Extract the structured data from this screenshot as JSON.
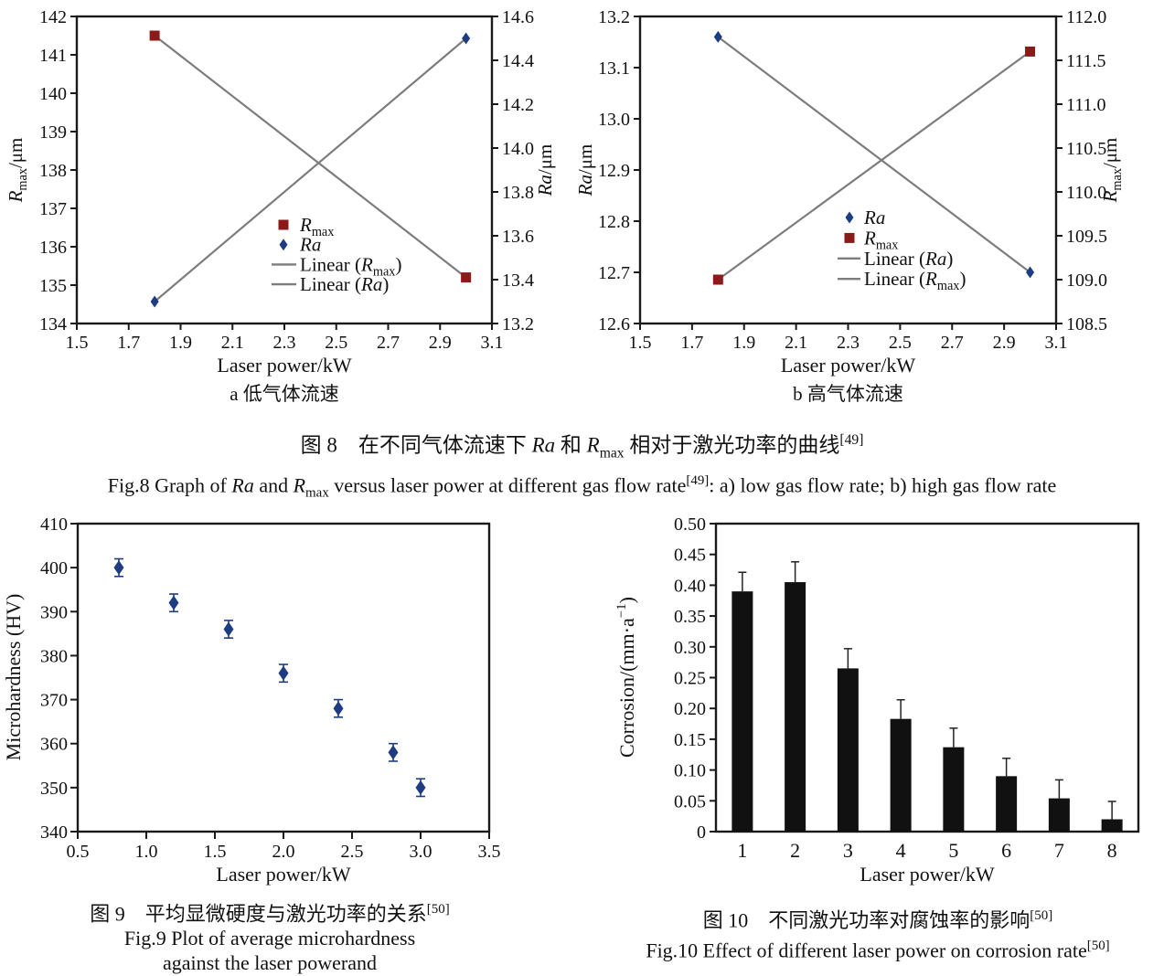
{
  "page": {
    "background": "#ffffff"
  },
  "colors": {
    "rmax_red": "#8c1a1a",
    "ra_blue": "#1e3c82",
    "fit_line_gray": "#7d7d7d",
    "bar_black": "#111111",
    "axis_black": "#1a1a1a"
  },
  "captions": {
    "fig8": {
      "cn": [
        {
          "t": "图 8　在不同气体流速下 "
        },
        {
          "t": "Ra",
          "s": "i"
        },
        {
          "t": " 和 "
        },
        {
          "t": "R",
          "s": "i"
        },
        {
          "t": "max",
          "s": "sub"
        },
        {
          "t": " 相对于激光功率的曲线"
        },
        {
          "t": "[49]",
          "s": "sup"
        }
      ],
      "en": [
        {
          "t": "Fig.8 Graph of "
        },
        {
          "t": "Ra",
          "s": "i"
        },
        {
          "t": " and "
        },
        {
          "t": "R",
          "s": "i"
        },
        {
          "t": "max",
          "s": "sub"
        },
        {
          "t": " versus laser power at different gas flow rate"
        },
        {
          "t": "[49]",
          "s": "sup"
        },
        {
          "t": ": a) low gas flow rate; b) high gas flow rate"
        }
      ]
    },
    "fig9": {
      "cn": [
        {
          "t": "图 9　平均显微硬度与激光功率的关系"
        },
        {
          "t": "[50]",
          "s": "sup"
        }
      ],
      "en1": [
        {
          "t": "Fig.9 Plot of average microhardness"
        }
      ],
      "en2": [
        {
          "t": "against the laser powerand"
        }
      ]
    },
    "fig10": {
      "cn": [
        {
          "t": "图 10　不同激光功率对腐蚀率的影响"
        },
        {
          "t": "[50]",
          "s": "sup"
        }
      ],
      "en": [
        {
          "t": "Fig.10 Effect of different laser power on corrosion rate"
        },
        {
          "t": "[50]",
          "s": "sup"
        }
      ]
    }
  },
  "chart_data": [
    {
      "id": "fig8a",
      "type": "scatter",
      "title": "a 低气体流速",
      "xlabel": "Laser power/kW",
      "xlim": [
        1.5,
        3.1
      ],
      "xticks": [
        "1.5",
        "1.7",
        "1.9",
        "2.1",
        "2.3",
        "2.5",
        "2.7",
        "2.9",
        "3.1"
      ],
      "left_axis": {
        "label": [
          {
            "t": "R",
            "s": "i"
          },
          {
            "t": "max",
            "s": "sub"
          },
          {
            "t": "/μm"
          }
        ],
        "lim": [
          134,
          142
        ],
        "ticks": [
          "134",
          "135",
          "136",
          "137",
          "138",
          "139",
          "140",
          "141",
          "142"
        ]
      },
      "right_axis": {
        "label": [
          {
            "t": "Ra",
            "s": "i"
          },
          {
            "t": "/μm"
          }
        ],
        "lim": [
          13.2,
          14.6
        ],
        "ticks": [
          "13.2",
          "13.4",
          "13.6",
          "13.8",
          "14.0",
          "14.2",
          "14.4",
          "14.6"
        ]
      },
      "series": [
        {
          "name": "Rmax",
          "axis": "left",
          "marker": "square",
          "color_key": "rmax_red",
          "x": [
            1.8,
            3.0
          ],
          "y": [
            141.5,
            135.2
          ],
          "fit_line": true
        },
        {
          "name": "Ra",
          "axis": "right",
          "marker": "diamond",
          "color_key": "ra_blue",
          "x": [
            1.8,
            3.0
          ],
          "y": [
            13.3,
            14.5
          ],
          "fit_line": true
        }
      ],
      "legend": [
        {
          "marker": "square",
          "color_key": "rmax_red",
          "label": [
            {
              "t": "R",
              "s": "i"
            },
            {
              "t": "max",
              "s": "sub"
            }
          ]
        },
        {
          "marker": "diamond",
          "color_key": "ra_blue",
          "label": [
            {
              "t": "Ra",
              "s": "i"
            }
          ]
        },
        {
          "marker": "line",
          "color_key": "fit_line_gray",
          "label": [
            {
              "t": "Linear ("
            },
            {
              "t": "R",
              "s": "i"
            },
            {
              "t": "max",
              "s": "sub"
            },
            {
              "t": ")"
            }
          ]
        },
        {
          "marker": "line",
          "color_key": "fit_line_gray",
          "label": [
            {
              "t": "Linear ("
            },
            {
              "t": "Ra",
              "s": "i"
            },
            {
              "t": ")"
            }
          ]
        }
      ]
    },
    {
      "id": "fig8b",
      "type": "scatter",
      "title": "b 高气体流速",
      "xlabel": "Laser power/kW",
      "xlim": [
        1.5,
        3.1
      ],
      "xticks": [
        "1.5",
        "1.7",
        "1.9",
        "2.1",
        "2.3",
        "2.5",
        "2.7",
        "2.9",
        "3.1"
      ],
      "left_axis": {
        "label": [
          {
            "t": "Ra",
            "s": "i"
          },
          {
            "t": "/μm"
          }
        ],
        "lim": [
          12.6,
          13.2
        ],
        "ticks": [
          "12.6",
          "12.7",
          "12.8",
          "12.9",
          "13.0",
          "13.1",
          "13.2"
        ]
      },
      "right_axis": {
        "label": [
          {
            "t": "R",
            "s": "i"
          },
          {
            "t": "max",
            "s": "sub"
          },
          {
            "t": "/μm"
          }
        ],
        "lim": [
          108.5,
          112.0
        ],
        "ticks": [
          "108.5",
          "109.0",
          "109.5",
          "110.0",
          "110.5",
          "111.0",
          "111.5",
          "112.0"
        ]
      },
      "series": [
        {
          "name": "Ra",
          "axis": "left",
          "marker": "diamond",
          "color_key": "ra_blue",
          "x": [
            1.8,
            3.0
          ],
          "y": [
            13.16,
            12.7
          ],
          "fit_line": true
        },
        {
          "name": "Rmax",
          "axis": "right",
          "marker": "square",
          "color_key": "rmax_red",
          "x": [
            1.8,
            3.0
          ],
          "y": [
            109.0,
            111.6
          ],
          "fit_line": true
        }
      ],
      "legend": [
        {
          "marker": "diamond",
          "color_key": "ra_blue",
          "label": [
            {
              "t": "Ra",
              "s": "i"
            }
          ]
        },
        {
          "marker": "square",
          "color_key": "rmax_red",
          "label": [
            {
              "t": "R",
              "s": "i"
            },
            {
              "t": "max",
              "s": "sub"
            }
          ]
        },
        {
          "marker": "line",
          "color_key": "fit_line_gray",
          "label": [
            {
              "t": "Linear ("
            },
            {
              "t": "Ra",
              "s": "i"
            },
            {
              "t": ")"
            }
          ]
        },
        {
          "marker": "line",
          "color_key": "fit_line_gray",
          "label": [
            {
              "t": "Linear ("
            },
            {
              "t": "R",
              "s": "i"
            },
            {
              "t": "max",
              "s": "sub"
            },
            {
              "t": ")"
            }
          ]
        }
      ]
    },
    {
      "id": "fig9",
      "type": "scatter-error",
      "xlabel": "Laser power/kW",
      "ylabel": [
        {
          "t": "Microhardness (HV)"
        }
      ],
      "xlim": [
        0.5,
        3.5
      ],
      "xticks": [
        "0.5",
        "1.0",
        "1.5",
        "2.0",
        "2.5",
        "3.0",
        "3.5"
      ],
      "ylim": [
        340,
        410
      ],
      "yticks": [
        "340",
        "350",
        "360",
        "370",
        "380",
        "390",
        "400",
        "410"
      ],
      "x": [
        0.8,
        1.2,
        1.6,
        2.0,
        2.4,
        2.8,
        3.0
      ],
      "y": [
        400,
        392,
        386,
        376,
        368,
        358,
        350
      ],
      "yerr": [
        2,
        2,
        2,
        2,
        2,
        2,
        2
      ],
      "marker": "diamond",
      "color_key": "ra_blue"
    },
    {
      "id": "fig10",
      "type": "bar",
      "xlabel": "Laser power/kW",
      "ylabel": [
        {
          "t": "Corrosion/(mm·a"
        },
        {
          "t": "−1",
          "s": "sup"
        },
        {
          "t": ")"
        }
      ],
      "categories": [
        "1",
        "2",
        "3",
        "4",
        "5",
        "6",
        "7",
        "8"
      ],
      "values": [
        0.39,
        0.405,
        0.265,
        0.183,
        0.137,
        0.09,
        0.054,
        0.02
      ],
      "yerr_up": [
        0.031,
        0.033,
        0.032,
        0.031,
        0.031,
        0.029,
        0.03,
        0.029
      ],
      "ylim": [
        0,
        0.5
      ],
      "yticks": [
        "0",
        "0.05",
        "0.10",
        "0.15",
        "0.20",
        "0.25",
        "0.30",
        "0.35",
        "0.40",
        "0.45",
        "0.50"
      ],
      "color_key": "bar_black"
    }
  ]
}
